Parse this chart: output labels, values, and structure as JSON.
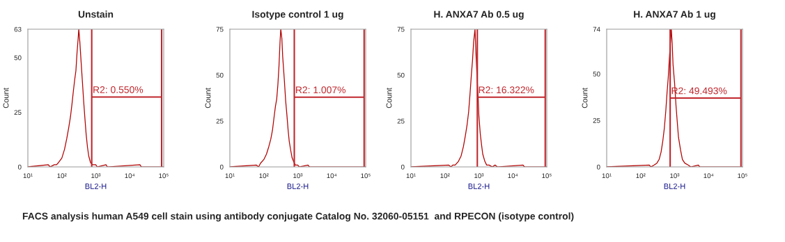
{
  "chart_data": [
    {
      "type": "line",
      "title": "Unstain",
      "xlabel": "BL2-H",
      "ylabel": "Count",
      "log": "x",
      "xlim": [
        10,
        100000
      ],
      "xticks": [
        {
          "value": 10,
          "label": "10¹"
        },
        {
          "value": 100,
          "label": "10²"
        },
        {
          "value": 1000,
          "label": "10³"
        },
        {
          "value": 10000,
          "label": "10⁴"
        },
        {
          "value": 100000,
          "label": "10⁵"
        }
      ],
      "ylim": [
        0,
        63
      ],
      "yticks": [
        0,
        25,
        50,
        63
      ],
      "series": [
        {
          "color": "#b00000",
          "x": [
            10,
            40,
            45,
            60,
            70,
            80,
            100,
            120,
            140,
            160,
            180,
            200,
            220,
            240,
            260,
            280,
            300,
            316,
            340,
            370,
            400,
            440,
            480,
            520,
            570,
            620,
            700,
            800,
            1000,
            1100,
            2000,
            2200,
            20000,
            22000,
            100000
          ],
          "values": [
            0,
            1,
            0,
            1,
            1,
            2,
            4,
            8,
            13,
            18,
            23,
            29,
            35,
            40,
            44,
            52,
            58,
            63,
            57,
            48,
            40,
            30,
            22,
            15,
            9,
            5,
            2,
            1,
            1,
            0,
            1,
            0,
            1,
            0,
            0
          ]
        },
        {
          "type": "line",
          "color": "#c0272d",
          "x": [
            760,
            760,
            760,
            87000,
            87000,
            87000
          ],
          "values": [
            63,
            0,
            32,
            32,
            0,
            63
          ]
        }
      ],
      "annotations": [
        {
          "text": "R2: 0.550%",
          "x": 760,
          "y": 32
        },
        "FACS analysis human A549 cell stain using antibody conjugate Catalog No. 32060-05151  and RPECON (isotype control)"
      ]
    },
    {
      "type": "line",
      "title": "Isotype control 1 ug",
      "xlabel": "BL2-H",
      "ylabel": "Count",
      "log": "x",
      "xlim": [
        10,
        100000
      ],
      "xticks": [
        {
          "value": 10,
          "label": "10¹"
        },
        {
          "value": 100,
          "label": "10²"
        },
        {
          "value": 1000,
          "label": "10³"
        },
        {
          "value": 10000,
          "label": "10⁴"
        },
        {
          "value": 100000,
          "label": "10⁵"
        }
      ],
      "ylim": [
        0,
        75
      ],
      "yticks": [
        0,
        25,
        50,
        75
      ],
      "series": [
        {
          "color": "#b00000",
          "x": [
            10,
            60,
            70,
            80,
            100,
            120,
            140,
            160,
            180,
            200,
            220,
            240,
            260,
            280,
            300,
            316,
            340,
            360,
            400,
            440,
            480,
            520,
            560,
            620,
            680,
            750,
            850,
            1000,
            1100,
            2000,
            2200,
            100000
          ],
          "values": [
            0,
            1,
            0,
            2,
            4,
            7,
            11,
            15,
            20,
            27,
            33,
            37,
            45,
            55,
            68,
            75,
            70,
            60,
            48,
            36,
            28,
            20,
            14,
            9,
            5,
            3,
            1,
            1,
            0,
            1,
            0,
            0
          ]
        },
        {
          "type": "line",
          "color": "#c0272d",
          "x": [
            790,
            790,
            790,
            90000,
            90000,
            90000
          ],
          "values": [
            75,
            0,
            38,
            38,
            0,
            75
          ]
        }
      ],
      "annotations": [
        {
          "text": "R2: 1.007%",
          "x": 790,
          "y": 38
        }
      ]
    },
    {
      "type": "line",
      "title": "H. ANXA7 Ab 0.5 ug",
      "xlabel": "BL2-H",
      "ylabel": "Count",
      "log": "x",
      "xlim": [
        10,
        100000
      ],
      "xticks": [
        {
          "value": 10,
          "label": "10¹"
        },
        {
          "value": 100,
          "label": "10²"
        },
        {
          "value": 1000,
          "label": "10³"
        },
        {
          "value": 10000,
          "label": "10⁴"
        },
        {
          "value": 100000,
          "label": "10⁵"
        }
      ],
      "ylim": [
        0,
        75
      ],
      "yticks": [
        0,
        25,
        50,
        75
      ],
      "series": [
        {
          "color": "#b00000",
          "x": [
            10,
            130,
            150,
            170,
            200,
            250,
            300,
            350,
            400,
            450,
            500,
            550,
            600,
            650,
            700,
            770,
            820,
            880,
            950,
            1000,
            1100,
            1200,
            1300,
            1500,
            1700,
            2000,
            2500,
            3000,
            3500,
            20000,
            22000,
            100000
          ],
          "values": [
            0,
            1,
            0,
            1,
            1,
            3,
            6,
            11,
            17,
            23,
            30,
            40,
            50,
            58,
            68,
            75,
            62,
            50,
            38,
            28,
            18,
            12,
            7,
            3,
            1,
            1,
            0,
            1,
            0,
            1,
            0,
            0
          ]
        },
        {
          "type": "line",
          "color": "#c0272d",
          "x": [
            900,
            900,
            900,
            90000,
            90000,
            90000
          ],
          "values": [
            75,
            0,
            38,
            38,
            0,
            75
          ]
        }
      ],
      "annotations": [
        {
          "text": "R2: 16.322%",
          "x": 900,
          "y": 38
        }
      ]
    },
    {
      "type": "line",
      "title": "H. ANXA7 Ab 1 ug",
      "xlabel": "BL2-H",
      "ylabel": "Count",
      "log": "x",
      "xlim": [
        10,
        100000
      ],
      "xticks": [
        {
          "value": 10,
          "label": "10¹"
        },
        {
          "value": 100,
          "label": "10²"
        },
        {
          "value": 1000,
          "label": "10³"
        },
        {
          "value": 10000,
          "label": "10⁴"
        },
        {
          "value": 100000,
          "label": "10⁵"
        }
      ],
      "ylim": [
        0,
        74
      ],
      "yticks": [
        0,
        25,
        50,
        74
      ],
      "series": [
        {
          "color": "#b00000",
          "x": [
            10,
            180,
            200,
            250,
            300,
            350,
            400,
            450,
            500,
            550,
            600,
            650,
            700,
            760,
            800,
            850,
            900,
            1000,
            1100,
            1200,
            1300,
            1500,
            1700,
            2000,
            2500,
            3000,
            5000,
            5500,
            100000
          ],
          "values": [
            0,
            1,
            0,
            1,
            2,
            4,
            8,
            14,
            21,
            30,
            40,
            48,
            58,
            68,
            74,
            66,
            55,
            45,
            33,
            24,
            16,
            9,
            4,
            2,
            1,
            0,
            1,
            0,
            0
          ]
        },
        {
          "type": "line",
          "color": "#c0272d",
          "x": [
            740,
            740,
            740,
            90000,
            90000,
            90000
          ],
          "values": [
            74,
            0,
            37,
            37,
            0,
            74
          ]
        }
      ],
      "annotations": [
        {
          "text": "R2: 49.493%",
          "x": 740,
          "y": 37
        }
      ]
    }
  ]
}
